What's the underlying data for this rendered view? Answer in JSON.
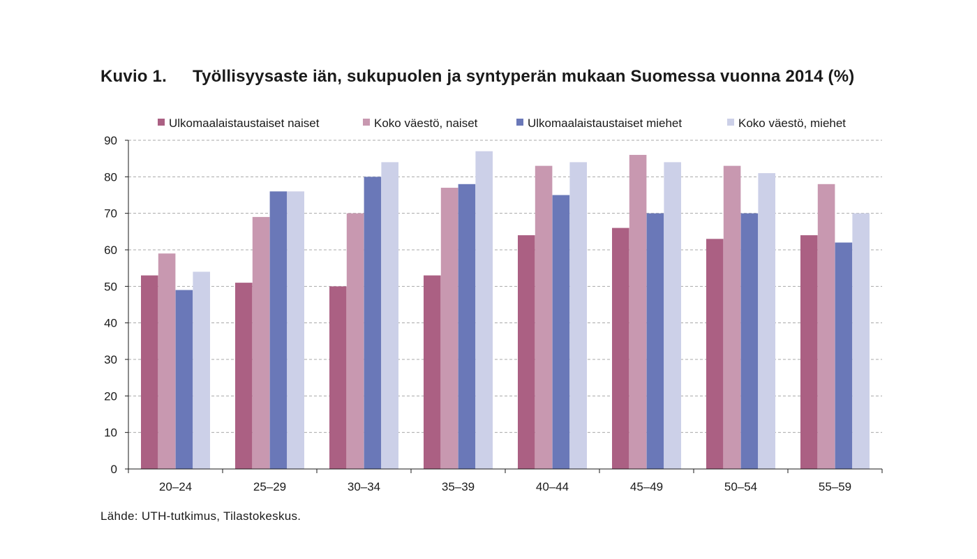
{
  "figure": {
    "label": "Kuvio 1.",
    "title": "Työllisyysaste iän, sukupuolen ja syntyperän mukaan Suomessa vuonna 2014 (%)",
    "source": "Lähde: UTH-tutkimus, Tilastokeskus."
  },
  "chart_data": {
    "type": "bar",
    "title": "Työllisyysaste iän, sukupuolen ja syntyperän mukaan Suomessa vuonna 2014 (%)",
    "xlabel": "",
    "ylabel": "",
    "ylim": [
      0,
      90
    ],
    "yticks": [
      0,
      10,
      20,
      30,
      40,
      50,
      60,
      70,
      80,
      90
    ],
    "grid": true,
    "legend_position": "top",
    "categories": [
      "20–24",
      "25–29",
      "30–34",
      "35–39",
      "40–44",
      "45–49",
      "50–54",
      "55–59"
    ],
    "series": [
      {
        "name": "Ulkomaalaistaustaiset naiset",
        "color": "#ab6083",
        "values": [
          53,
          51,
          50,
          53,
          64,
          66,
          63,
          64
        ]
      },
      {
        "name": "Koko väestö, naiset",
        "color": "#c898b0",
        "values": [
          59,
          69,
          70,
          77,
          83,
          86,
          83,
          78
        ]
      },
      {
        "name": "Ulkomaalaistaustaiset miehet",
        "color": "#6a78b8",
        "values": [
          49,
          76,
          80,
          78,
          75,
          70,
          70,
          62
        ]
      },
      {
        "name": "Koko väestö, miehet",
        "color": "#ccd0e8",
        "values": [
          54,
          76,
          84,
          87,
          84,
          84,
          81,
          70
        ]
      }
    ]
  }
}
